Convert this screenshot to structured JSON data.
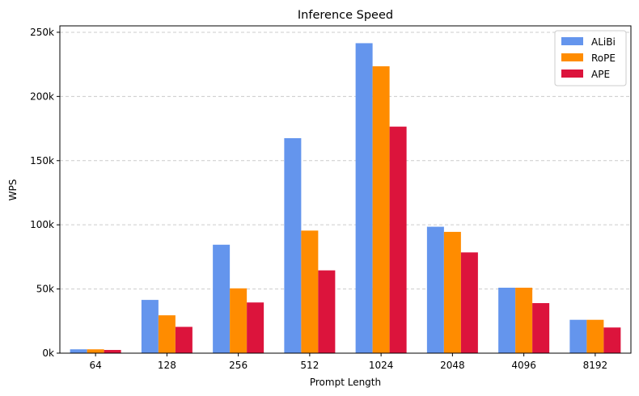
{
  "chart_data": {
    "type": "bar",
    "title": "Inference Speed",
    "xlabel": "Prompt Length",
    "ylabel": "WPS",
    "categories": [
      "64",
      "128",
      "256",
      "512",
      "1024",
      "2048",
      "4096",
      "8192"
    ],
    "series": [
      {
        "name": "ALiBi",
        "color": "#6495ED",
        "values": [
          3000,
          41500,
          84500,
          167500,
          241500,
          98500,
          51000,
          26000
        ]
      },
      {
        "name": "RoPE",
        "color": "#FF8C00",
        "values": [
          3000,
          29500,
          50500,
          95500,
          223500,
          94500,
          51000,
          26000
        ]
      },
      {
        "name": "APE",
        "color": "#DC143C",
        "values": [
          2500,
          20500,
          39500,
          64500,
          176500,
          78500,
          39000,
          20000
        ]
      }
    ],
    "ylim": [
      0,
      255000
    ],
    "yticks": [
      {
        "value": 0,
        "label": "0k"
      },
      {
        "value": 50000,
        "label": "50k"
      },
      {
        "value": 100000,
        "label": "100k"
      },
      {
        "value": 150000,
        "label": "150k"
      },
      {
        "value": 200000,
        "label": "200k"
      },
      {
        "value": 250000,
        "label": "250k"
      }
    ],
    "grid": "y-dashed",
    "legend_position": "top-right"
  }
}
